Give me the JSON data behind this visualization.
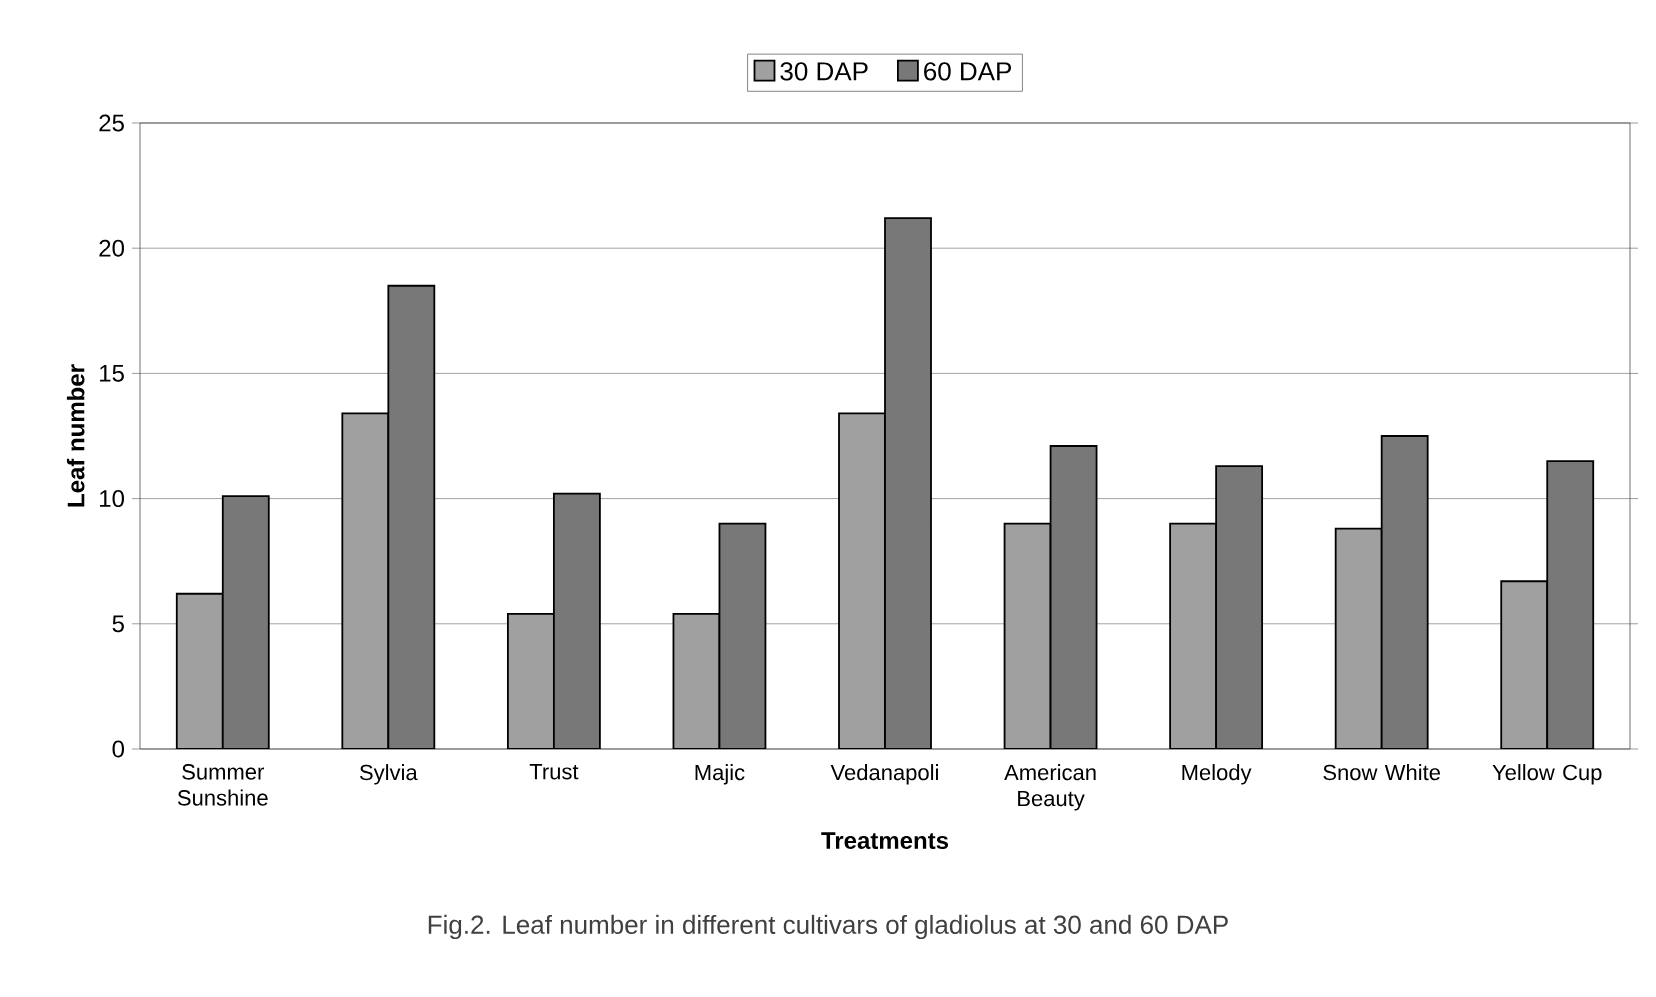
{
  "chart_data": {
    "type": "bar",
    "xlabel": "Treatments",
    "ylabel": "Leaf number",
    "categories": [
      "Summer Sunshine",
      "Sylvia",
      "Trust",
      "Majic",
      "Vedanapoli",
      "American Beauty",
      "Melody",
      "Snow White",
      "Yellow Cup"
    ],
    "series": [
      {
        "name": "30 DAP",
        "color": "#a0a0a0",
        "values": [
          6.2,
          13.4,
          5.4,
          5.4,
          13.4,
          9.0,
          9.0,
          8.8,
          6.7
        ]
      },
      {
        "name": "60 DAP",
        "color": "#787878",
        "values": [
          10.1,
          18.5,
          10.2,
          9.0,
          21.2,
          12.1,
          11.3,
          12.5,
          11.5
        ]
      }
    ],
    "ylim": [
      0,
      25
    ],
    "yticks": [
      0,
      5,
      10,
      15,
      20,
      25
    ],
    "grid": "y",
    "legend": "top",
    "annotations": [
      "Fig.2.  Leaf number in different cultivars of gladiolus at 30 and 60 DAP"
    ]
  }
}
